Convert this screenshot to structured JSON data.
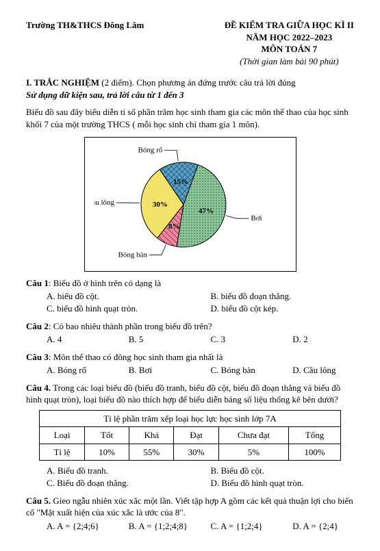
{
  "header": {
    "school": "Trường TH&THCS Đông Lâm",
    "title1": "ĐỀ KIỂM TRA GIỮA HỌC KÌ II",
    "title2": "NĂM HỌC 2022–2023",
    "title3": "MÔN TOÁN 7",
    "time": "(Thời gian làm bài 90 phút)"
  },
  "section1": {
    "label": "I. TRẮC NGHIỆM",
    "points": "(2 điểm).",
    "instr": "Chọn phương án đứng trước câu trả lời đúng",
    "sub": "Sử dụng dữ kiện sau, trả lời câu từ 1 đến 3"
  },
  "intro": "Biểu đồ sau đây biểu diễn tỉ số phần trăm học sinh tham gia các môn thể thao của học sinh khối 7 của một trường THCS ( mỗi học sinh chỉ tham gia 1 môn).",
  "pie": {
    "type": "pie",
    "slices": [
      {
        "label": "Bơi",
        "value": 47,
        "display": "47%",
        "fill_pattern": "dots",
        "fill_color": "#8ec59b",
        "leader": true
      },
      {
        "label": "Bóng bàn",
        "value": 8,
        "display": "8%",
        "fill_pattern": "hatch",
        "fill_color": "#e58aa0",
        "leader": true
      },
      {
        "label": "Cầu lông",
        "value": 30,
        "display": "30%",
        "fill_pattern": "solid",
        "fill_color": "#f4e36b",
        "leader": true
      },
      {
        "label": "Bóng rổ",
        "value": 15,
        "display": "15%",
        "fill_pattern": "weave",
        "fill_color": "#5aa0c5",
        "leader": true
      }
    ],
    "start_angle_deg": -70,
    "stroke": "#000000",
    "label_font_size": 11,
    "pct_font_weight": "bold",
    "radius": 62,
    "box_border": "#000000",
    "box_bg": "#ffffff"
  },
  "q1": {
    "title": "Câu 1",
    "text": ": Biểu đồ ở hình trên có dạng là",
    "a": "A. biểu đồ cột.",
    "b": "B. biểu đồ đoạn thẳng.",
    "c": "C. biểu đồ hình quạt tròn.",
    "d": "D. biểu đồ cột kép."
  },
  "q2": {
    "title": "Câu 2",
    "text": ": Có bao nhiêu thành phần trong biểu đồ trên?",
    "a": "A. 4",
    "b": "B. 5",
    "c": "C. 3",
    "d": "D. 2"
  },
  "q3": {
    "title": "Câu 3",
    "text": ": Môn thể thao có đông học sinh tham gia nhất là",
    "a": "A. Bóng rổ",
    "b": "B. Bơi",
    "c": "C. Bóng bàn",
    "d": "D. Cầu lông"
  },
  "q4": {
    "title": "Câu 4.",
    "text": " Trong các loại biểu đồ (biểu đồ tranh, biểu đồ cột, biểu đồ đoạn thẳng và biểu đồ hình quạt tròn), loại biểu đồ nào thích hợp để biểu diễn bảng số liệu thống kê bên dưới?",
    "table": {
      "caption": "Tỉ lệ phần trăm xếp loại học lực học sinh lớp 7A",
      "rowhead1": "Loại",
      "rowhead2": "Tỉ lệ",
      "cols": [
        "Tốt",
        "Khá",
        "Đạt",
        "Chưa đạt",
        "Tổng"
      ],
      "rows": [
        [
          "10%",
          "55%",
          "30%",
          "5%",
          "100%"
        ]
      ]
    },
    "a": "A. Biểu đồ tranh.",
    "b": "B. Biểu đồ cột.",
    "c": "C. Biểu đồ đoạn thẳng.",
    "d": "D. Biểu đồ hình quạt tròn."
  },
  "q5": {
    "title": "Câu 5.",
    "text": " Gieo ngẫu nhiên xúc xắc một lần. Viết tập hợp A gồm các kết quả thuận lợi cho biến cố \"Mặt xuất hiện của xúc xắc là ước của 8\".",
    "a": "A. A = {2;4;6}",
    "b": "B. A = {1;2;4;8}",
    "c": "C. A = {1;2;4}",
    "d": "D. A = {2;4}"
  }
}
